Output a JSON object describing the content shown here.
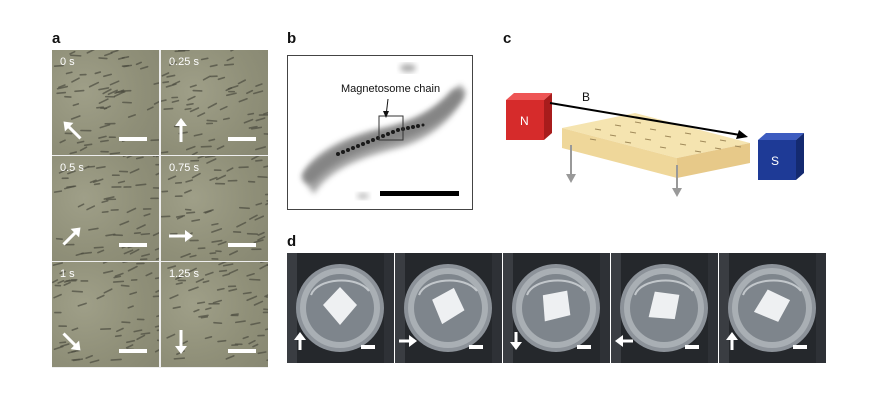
{
  "figure": {
    "panel_labels": {
      "a": "a",
      "b": "b",
      "c": "c",
      "d": "d"
    },
    "panel_a": {
      "cells": [
        {
          "time": "0 s",
          "arrow": "up-left"
        },
        {
          "time": "0.25 s",
          "arrow": "up"
        },
        {
          "time": "0.5 s",
          "arrow": "up-right"
        },
        {
          "time": "0.75 s",
          "arrow": "right"
        },
        {
          "time": "1 s",
          "arrow": "down-right"
        },
        {
          "time": "1.25 s",
          "arrow": "down"
        }
      ],
      "background_color": "#8f8f78"
    },
    "panel_b": {
      "annotation": "Magnetosome chain"
    },
    "panel_c": {
      "north_label": "N",
      "south_label": "S",
      "field_label": "B",
      "north_color": "#d62b2b",
      "south_color": "#1e3a96",
      "slab_color": "#f1d9a0"
    },
    "panel_d": {
      "frames": [
        {
          "arrow": "up"
        },
        {
          "arrow": "right"
        },
        {
          "arrow": "down"
        },
        {
          "arrow": "left"
        },
        {
          "arrow": "up"
        }
      ]
    }
  }
}
